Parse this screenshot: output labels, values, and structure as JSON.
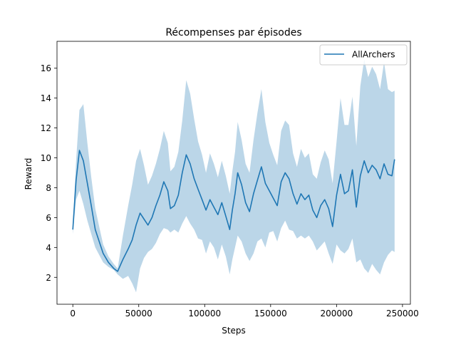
{
  "chart_data": {
    "type": "line",
    "title": "Récompenses par épisodes",
    "xlabel": "Steps",
    "ylabel": "Reward",
    "xlim": [
      -12000,
      256000
    ],
    "ylim": [
      0.2,
      17.8
    ],
    "xticks": [
      0,
      50000,
      100000,
      150000,
      200000,
      250000
    ],
    "xtick_labels": [
      "0",
      "50000",
      "100000",
      "150000",
      "200000",
      "250000"
    ],
    "yticks": [
      2,
      4,
      6,
      8,
      10,
      12,
      14,
      16
    ],
    "ytick_labels": [
      "2",
      "4",
      "6",
      "8",
      "10",
      "12",
      "14",
      "16"
    ],
    "grid": false,
    "legend": {
      "position": "top-right"
    },
    "colors": {
      "line": "#1f77b4",
      "band": "#1f77b4",
      "band_opacity": 0.3
    },
    "series": [
      {
        "name": "AllArchers",
        "x": [
          0,
          2500,
          5000,
          8000,
          11000,
          14000,
          17000,
          20000,
          23000,
          27000,
          31000,
          34000,
          38000,
          42000,
          45000,
          48000,
          51000,
          54000,
          57000,
          60000,
          63000,
          66000,
          69000,
          72000,
          74000,
          77000,
          80000,
          83000,
          86000,
          89000,
          92000,
          95000,
          98000,
          101000,
          104000,
          107000,
          110000,
          113000,
          116000,
          119000,
          121000,
          123000,
          125000,
          128000,
          131000,
          134000,
          137000,
          140000,
          143000,
          146000,
          149000,
          152000,
          155000,
          158000,
          161000,
          164000,
          167000,
          170000,
          173000,
          176000,
          179000,
          182000,
          185000,
          188000,
          191000,
          194000,
          197000,
          200000,
          203000,
          206000,
          209000,
          212000,
          215000,
          218000,
          221000,
          224000,
          227000,
          230000,
          233000,
          236000,
          239000,
          242000,
          244000
        ],
        "y": [
          5.2,
          8.5,
          10.5,
          9.8,
          8.3,
          6.8,
          5.2,
          4.4,
          3.6,
          3.0,
          2.6,
          2.4,
          3.2,
          3.9,
          4.5,
          5.5,
          6.3,
          5.9,
          5.5,
          6.0,
          6.8,
          7.5,
          8.4,
          7.8,
          6.6,
          6.8,
          7.5,
          9.0,
          10.2,
          9.6,
          8.6,
          7.9,
          7.2,
          6.5,
          7.2,
          6.7,
          6.2,
          7.0,
          6.1,
          5.2,
          6.5,
          7.6,
          9.0,
          8.2,
          7.0,
          6.4,
          7.6,
          8.5,
          9.4,
          8.3,
          7.8,
          7.3,
          6.8,
          8.4,
          9.0,
          8.6,
          7.6,
          6.9,
          7.6,
          7.2,
          7.5,
          6.5,
          6.0,
          6.8,
          7.2,
          6.6,
          5.4,
          7.5,
          8.9,
          7.6,
          7.8,
          9.2,
          6.7,
          8.8,
          9.8,
          9.0,
          9.5,
          9.2,
          8.6,
          9.6,
          8.9,
          8.8,
          9.9
        ],
        "lower": [
          4.9,
          7.2,
          7.8,
          6.9,
          5.8,
          4.9,
          4.0,
          3.5,
          3.0,
          2.7,
          2.5,
          2.2,
          1.9,
          2.1,
          1.6,
          1.0,
          2.6,
          3.3,
          3.7,
          3.9,
          4.3,
          4.9,
          5.3,
          5.2,
          5.0,
          5.2,
          5.0,
          5.6,
          6.1,
          5.6,
          5.2,
          4.6,
          4.5,
          3.6,
          4.4,
          4.0,
          3.2,
          4.2,
          3.4,
          2.2,
          3.2,
          4.0,
          4.8,
          4.4,
          3.6,
          3.1,
          3.6,
          4.4,
          4.6,
          4.0,
          5.0,
          5.1,
          4.4,
          5.3,
          5.8,
          5.2,
          5.1,
          4.6,
          4.8,
          4.6,
          4.8,
          4.4,
          3.8,
          4.1,
          4.4,
          3.6,
          2.9,
          4.2,
          3.8,
          3.6,
          3.9,
          4.6,
          3.0,
          3.2,
          2.6,
          2.3,
          2.9,
          2.5,
          2.2,
          3.0,
          3.5,
          3.8,
          3.7
        ],
        "upper": [
          5.5,
          9.8,
          13.2,
          13.6,
          11.0,
          8.7,
          6.6,
          5.4,
          4.2,
          3.4,
          2.9,
          2.6,
          4.8,
          6.8,
          8.2,
          9.8,
          10.6,
          9.5,
          8.2,
          8.8,
          9.6,
          10.6,
          11.8,
          11.0,
          9.1,
          9.4,
          10.4,
          12.5,
          15.2,
          14.3,
          12.6,
          11.1,
          10.2,
          9.0,
          10.3,
          9.6,
          8.7,
          9.8,
          8.8,
          7.6,
          9.1,
          10.4,
          12.4,
          11.2,
          9.6,
          9.0,
          11.2,
          13.0,
          14.6,
          12.4,
          11.0,
          10.2,
          9.5,
          11.8,
          12.5,
          12.2,
          10.3,
          9.4,
          10.6,
          10.0,
          10.3,
          8.9,
          8.6,
          9.7,
          10.5,
          9.9,
          8.3,
          11.1,
          14.0,
          12.2,
          12.2,
          14.1,
          10.8,
          14.8,
          16.6,
          15.4,
          16.1,
          15.6,
          14.6,
          16.4,
          14.6,
          14.4,
          14.5
        ]
      }
    ]
  }
}
